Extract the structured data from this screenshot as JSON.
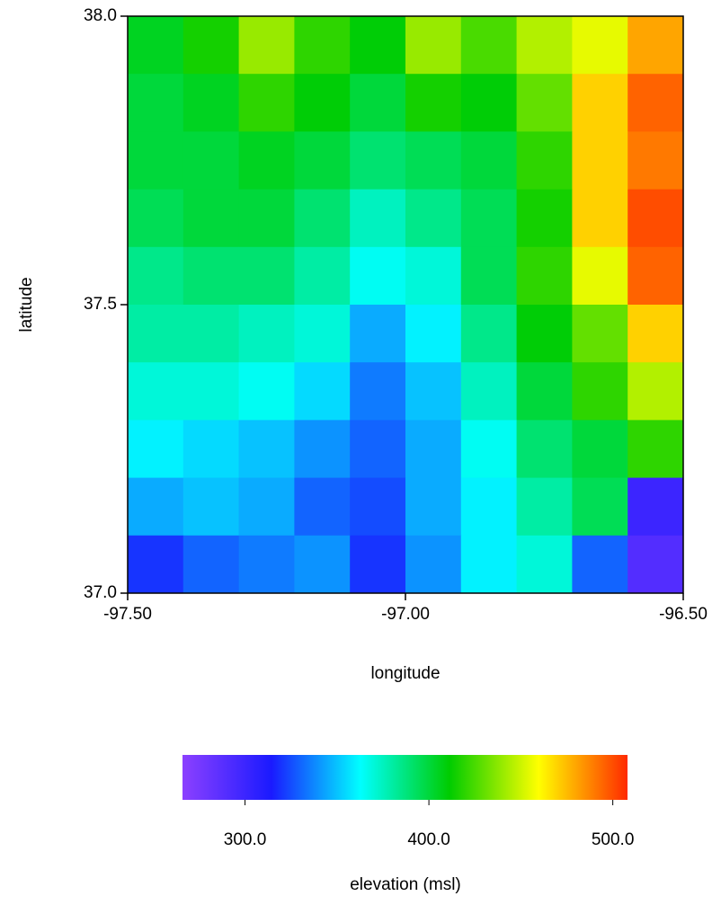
{
  "chart_data": {
    "type": "heatmap",
    "x_label": "longitude",
    "y_label": "latitude",
    "x": [
      -97.45,
      -97.35,
      -97.25,
      -97.15,
      -97.05,
      -96.95,
      -96.85,
      -96.75,
      -96.65,
      -96.55
    ],
    "y": [
      37.95,
      37.85,
      37.75,
      37.65,
      37.55,
      37.45,
      37.35,
      37.25,
      37.15,
      37.05
    ],
    "z": [
      [
        405,
        415,
        440,
        420,
        410,
        440,
        425,
        445,
        455,
        480
      ],
      [
        400,
        405,
        420,
        410,
        400,
        415,
        410,
        430,
        470,
        495
      ],
      [
        400,
        400,
        405,
        400,
        390,
        395,
        400,
        420,
        470,
        490
      ],
      [
        395,
        400,
        400,
        390,
        375,
        385,
        395,
        415,
        470,
        500
      ],
      [
        385,
        390,
        390,
        380,
        365,
        370,
        395,
        420,
        455,
        495
      ],
      [
        380,
        380,
        375,
        370,
        345,
        360,
        385,
        410,
        430,
        470
      ],
      [
        370,
        370,
        365,
        355,
        335,
        350,
        375,
        400,
        420,
        445
      ],
      [
        360,
        355,
        350,
        340,
        330,
        345,
        365,
        390,
        400,
        420
      ],
      [
        345,
        350,
        345,
        330,
        325,
        345,
        360,
        380,
        395,
        300
      ],
      [
        320,
        330,
        335,
        340,
        320,
        340,
        360,
        370,
        330,
        290
      ]
    ],
    "xlim": [
      -97.5,
      -96.5
    ],
    "ylim": [
      37.0,
      38.0
    ],
    "xticks": [
      {
        "value": -97.5,
        "label": "-97.50"
      },
      {
        "value": -97.0,
        "label": "-97.00"
      },
      {
        "value": -96.5,
        "label": "-96.50"
      }
    ],
    "yticks": [
      {
        "value": 37.0,
        "label": "37.0"
      },
      {
        "value": 37.5,
        "label": "37.5"
      },
      {
        "value": 38.0,
        "label": "38.0"
      }
    ],
    "colorbar_label": "elevation (msl)",
    "clim": [
      266,
      508
    ],
    "cticks": [
      {
        "value": 300,
        "label": "300.0"
      },
      {
        "value": 400,
        "label": "400.0"
      },
      {
        "value": 500,
        "label": "500.0"
      }
    ],
    "colormap": [
      "#8c40ff",
      "#1a1aff",
      "#00ffff",
      "#00cc00",
      "#ffff00",
      "#ff2a00"
    ]
  }
}
